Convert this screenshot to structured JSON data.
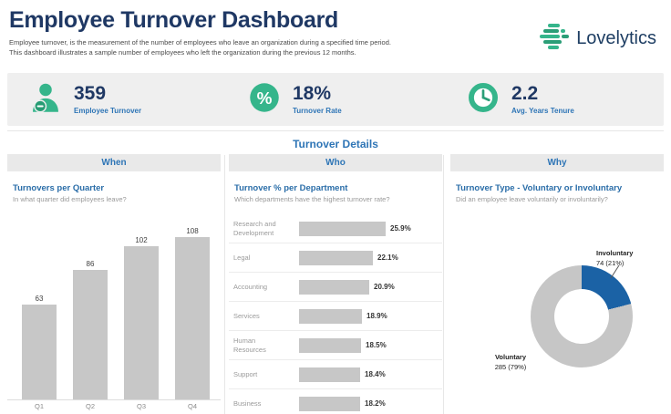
{
  "header": {
    "title": "Employee Turnover Dashboard",
    "subtitle_line1": "Employee turnover, is the measurement of the number of employees who leave an organization during a specified time period.",
    "subtitle_line2": "This dashboard illustrates a sample number of employees who left the organization during the previous 12 months.",
    "logo_text": "Lovelytics"
  },
  "kpis": [
    {
      "icon": "person-minus-icon",
      "value": "359",
      "label": "Employee Turnover"
    },
    {
      "icon": "percent-icon",
      "value": "18%",
      "label": "Turnover Rate"
    },
    {
      "icon": "clock-icon",
      "value": "2.2",
      "label": "Avg. Years Tenure"
    }
  ],
  "section_title": "Turnover Details",
  "columns": [
    {
      "header": "When"
    },
    {
      "header": "Who"
    },
    {
      "header": "Why"
    }
  ],
  "chart_data": [
    {
      "type": "bar",
      "title": "Turnovers per Quarter",
      "subtitle": "In what quarter did employees leave?",
      "categories": [
        "Q1",
        "Q2",
        "Q3",
        "Q4"
      ],
      "values": [
        63,
        86,
        102,
        108
      ],
      "ylim": [
        0,
        108
      ],
      "bar_color": "#c7c7c7",
      "legend": "none",
      "grid": false
    },
    {
      "type": "bar",
      "orientation": "horizontal",
      "title": "Turnover % per Department",
      "subtitle": "Which departments have the highest turnover rate?",
      "categories": [
        "Research and Development",
        "Legal",
        "Accounting",
        "Services",
        "Human Resources",
        "Support",
        "Business"
      ],
      "values": [
        25.9,
        22.1,
        20.9,
        18.9,
        18.5,
        18.4,
        18.2
      ],
      "value_labels": [
        "25.9%",
        "22.1%",
        "20.9%",
        "18.9%",
        "18.5%",
        "18.4%",
        "18.2%"
      ],
      "xlim": [
        0,
        25.9
      ],
      "bar_color": "#c7c7c7",
      "legend": "none",
      "grid": false
    },
    {
      "type": "pie",
      "donut": true,
      "title": "Turnover Type - Voluntary or Involuntary",
      "subtitle": "Did an employee leave voluntarily or involuntarily?",
      "slices": [
        {
          "label": "Involuntary",
          "value": 74,
          "pct": 21,
          "annotation": "74 (21%)",
          "color": "#1b62a5"
        },
        {
          "label": "Voluntary",
          "value": 285,
          "pct": 79,
          "annotation": "285 (79%)",
          "color": "#c6c6c6"
        }
      ]
    }
  ],
  "colors": {
    "title_navy": "#1f3864",
    "accent_blue": "#2e75b6",
    "brand_green": "#35b58b",
    "bar_gray": "#c7c7c7",
    "donut_blue": "#1b62a5",
    "band_gray": "#efefef"
  }
}
